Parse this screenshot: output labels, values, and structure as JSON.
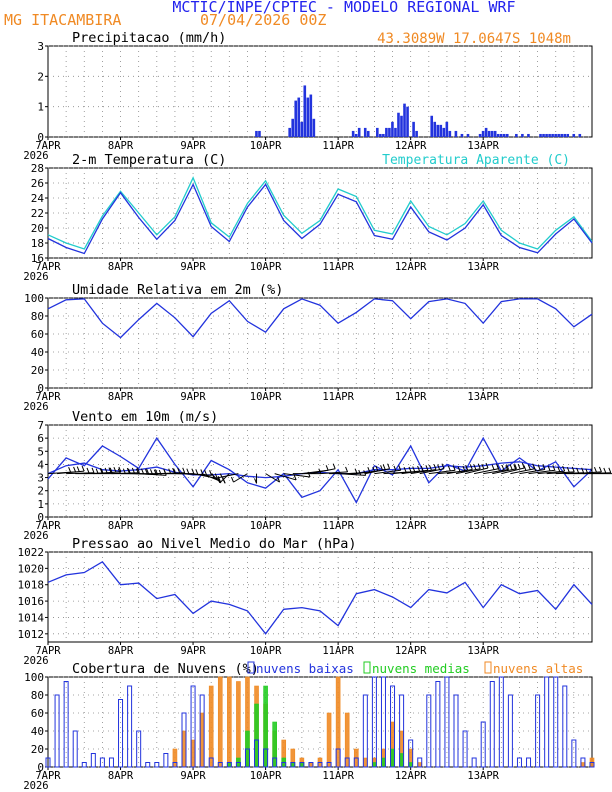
{
  "header": {
    "title": "MCTIC/INPE/CPTEC - MODELO REGIONAL WRF",
    "location": "MG ITACAMBIRA",
    "date": "07/04/2026 00Z",
    "coords": "43.3089W 17.0647S 1048m"
  },
  "days": [
    "7APR",
    "8APR",
    "9APR",
    "10APR",
    "11APR",
    "12APR",
    "13APR"
  ],
  "year_label": "2026",
  "colors": {
    "title": "#2222ee",
    "orange": "#f08a24",
    "cyan": "#22cccc",
    "blue": "#2233dd",
    "green": "#22cc22",
    "black": "#000000"
  },
  "chart_data": [
    {
      "type": "bar",
      "title": "Precipitacao (mm/h)",
      "ylim": [
        0,
        3
      ],
      "yticks": [
        "0",
        "1",
        "2",
        "3"
      ],
      "x_hours": [
        69,
        70,
        80,
        81,
        82,
        83,
        84,
        85,
        86,
        87,
        88,
        101,
        102,
        103,
        105,
        106,
        109,
        110,
        111,
        112,
        113,
        114,
        115,
        116,
        117,
        118,
        119,
        121,
        122,
        127,
        128,
        129,
        130,
        131,
        132,
        133,
        135,
        137,
        139,
        143,
        144,
        145,
        146,
        147,
        148,
        149,
        150,
        151,
        152,
        155,
        157,
        159,
        163,
        164,
        165,
        166,
        167,
        168,
        169,
        170,
        171,
        172,
        174,
        176
      ],
      "values": [
        0.2,
        0.2,
        0.3,
        0.6,
        1.2,
        1.3,
        0.5,
        1.7,
        1.3,
        1.4,
        0.6,
        0.2,
        0.1,
        0.3,
        0.3,
        0.2,
        0.3,
        0.1,
        0.1,
        0.3,
        0.3,
        0.5,
        0.3,
        0.8,
        0.7,
        1.1,
        1.0,
        0.5,
        0.2,
        0.7,
        0.5,
        0.4,
        0.4,
        0.3,
        0.5,
        0.2,
        0.2,
        0.1,
        0.1,
        0.1,
        0.2,
        0.3,
        0.2,
        0.2,
        0.2,
        0.1,
        0.1,
        0.1,
        0.1,
        0.1,
        0.1,
        0.1,
        0.1,
        0.1,
        0.1,
        0.1,
        0.1,
        0.1,
        0.1,
        0.1,
        0.1,
        0.1,
        0.1,
        0.1
      ]
    },
    {
      "type": "line",
      "title": "2-m Temperatura (C)",
      "legend": "Temperatura Aparente (C)",
      "ylim": [
        16,
        28
      ],
      "yticks": [
        "16",
        "18",
        "20",
        "22",
        "24",
        "26",
        "28"
      ],
      "x_hours": [
        0,
        6,
        12,
        18,
        24,
        30,
        36,
        42,
        48,
        54,
        60,
        66,
        72,
        78,
        84,
        90,
        96,
        102,
        108,
        114,
        120,
        126,
        132,
        138,
        144,
        150,
        156,
        162,
        168,
        174,
        180
      ],
      "series": [
        {
          "name": "2-m Temperatura",
          "values": [
            18.6,
            17.4,
            16.6,
            21.2,
            24.7,
            21.4,
            18.5,
            21.0,
            25.8,
            20.2,
            18.2,
            22.8,
            25.8,
            21.0,
            18.6,
            20.5,
            24.5,
            23.5,
            19.0,
            18.5,
            22.8,
            19.5,
            18.4,
            20.0,
            23.1,
            19.0,
            17.4,
            16.7,
            19.2,
            21.2,
            18.0
          ]
        },
        {
          "name": "Temperatura Aparente",
          "values": [
            19.1,
            18.0,
            17.2,
            21.6,
            24.9,
            22.0,
            19.1,
            21.5,
            26.7,
            20.7,
            18.8,
            23.3,
            26.3,
            21.7,
            19.3,
            21.0,
            25.2,
            24.2,
            19.7,
            19.2,
            23.6,
            20.2,
            19.1,
            20.6,
            23.6,
            19.7,
            18.0,
            17.2,
            19.7,
            21.5,
            18.2
          ]
        }
      ]
    },
    {
      "type": "line",
      "title": "Umidade Relativa em 2m (%)",
      "ylim": [
        0,
        100
      ],
      "yticks": [
        "0",
        "20",
        "40",
        "60",
        "80",
        "100"
      ],
      "x_hours": [
        0,
        6,
        12,
        18,
        24,
        30,
        36,
        42,
        48,
        54,
        60,
        66,
        72,
        78,
        84,
        90,
        96,
        102,
        108,
        114,
        120,
        126,
        132,
        138,
        144,
        150,
        156,
        162,
        168,
        174,
        180
      ],
      "values": [
        88,
        98,
        99,
        72,
        56,
        76,
        94,
        78,
        57,
        83,
        97,
        74,
        62,
        88,
        99,
        92,
        72,
        84,
        99,
        97,
        77,
        96,
        99,
        94,
        72,
        96,
        99,
        99,
        88,
        68,
        82
      ]
    },
    {
      "type": "line",
      "title": "Vento em 10m (m/s)",
      "ylim": [
        0,
        7
      ],
      "yticks": [
        "0",
        "1",
        "2",
        "3",
        "4",
        "5",
        "6",
        "7"
      ],
      "x_hours": [
        0,
        6,
        12,
        18,
        24,
        30,
        36,
        42,
        48,
        54,
        60,
        66,
        72,
        78,
        84,
        90,
        96,
        102,
        108,
        114,
        120,
        126,
        132,
        138,
        144,
        150,
        156,
        162,
        168,
        174,
        180
      ],
      "series": [
        {
          "name": "Vento",
          "values": [
            2.9,
            4.5,
            3.9,
            5.4,
            4.6,
            3.7,
            6.0,
            4.0,
            2.3,
            4.3,
            3.6,
            2.6,
            2.2,
            3.3,
            1.5,
            2.0,
            3.6,
            1.1,
            3.9,
            3.2,
            5.4,
            2.6,
            4.0,
            3.5,
            6.0,
            3.5,
            4.5,
            3.5,
            4.2,
            2.3,
            3.6
          ]
        },
        {
          "name": "Vento suavizado",
          "values": [
            3.3,
            3.9,
            4.1,
            3.6,
            3.5,
            3.6,
            3.8,
            3.4,
            3.2,
            3.2,
            3.3,
            3.1,
            3.0,
            3.1,
            3.3,
            3.4,
            3.3,
            3.3,
            3.6,
            3.6,
            3.7,
            3.7,
            3.9,
            3.8,
            3.9,
            4.1,
            4.2,
            3.9,
            3.8,
            3.7,
            3.6
          ]
        }
      ],
      "barbs": {
        "x_hours": [
          0,
          3,
          6,
          9,
          12,
          15,
          18,
          21,
          24,
          27,
          30,
          33,
          36,
          39,
          42,
          45,
          48,
          51,
          54,
          57,
          60,
          63,
          66,
          69,
          72,
          75,
          78,
          81,
          84,
          87,
          90,
          93,
          96,
          99,
          102,
          105,
          108,
          111,
          114,
          117,
          120,
          123,
          126,
          129,
          132,
          135,
          138,
          141,
          144,
          147,
          150,
          153,
          156,
          159,
          162,
          165,
          168,
          171,
          174,
          177,
          180
        ],
        "direction_deg": [
          80,
          75,
          85,
          90,
          85,
          80,
          90,
          85,
          90,
          95,
          100,
          90,
          85,
          90,
          95,
          100,
          120,
          140,
          160,
          170,
          200,
          240,
          210,
          180,
          150,
          130,
          110,
          90,
          70,
          60,
          80,
          90,
          100,
          80,
          70,
          60,
          70,
          80,
          75,
          70,
          65,
          60,
          70,
          75,
          65,
          60,
          55,
          60,
          65,
          60,
          55,
          60,
          65,
          70,
          75,
          80,
          85,
          90,
          80,
          85,
          90
        ],
        "speed_ms": [
          3,
          3,
          4,
          4,
          5,
          5,
          5,
          6,
          6,
          6,
          5,
          5,
          5,
          4,
          3,
          3,
          2,
          2,
          2,
          2,
          2,
          2,
          2,
          2,
          2,
          2,
          2,
          2,
          2,
          2,
          2,
          2,
          3,
          3,
          3,
          3,
          3,
          3,
          4,
          4,
          4,
          4,
          4,
          4,
          4,
          4,
          4,
          4,
          5,
          5,
          5,
          5,
          5,
          4,
          4,
          4,
          4,
          4,
          3,
          3,
          3
        ]
      }
    },
    {
      "type": "line",
      "title": "Pressao ao Nivel Medio do Mar (hPa)",
      "ylim": [
        1011,
        1022
      ],
      "yticks": [
        "1012",
        "1014",
        "1016",
        "1018",
        "1020",
        "1022"
      ],
      "x_hours": [
        0,
        6,
        12,
        18,
        24,
        30,
        36,
        42,
        48,
        54,
        60,
        66,
        72,
        78,
        84,
        90,
        96,
        102,
        108,
        114,
        120,
        126,
        132,
        138,
        144,
        150,
        156,
        162,
        168,
        174,
        180
      ],
      "values": [
        1018.3,
        1019.2,
        1019.5,
        1020.8,
        1018.0,
        1018.2,
        1016.3,
        1016.8,
        1014.5,
        1016.0,
        1015.6,
        1014.8,
        1012.0,
        1015.0,
        1015.2,
        1014.8,
        1013.0,
        1016.9,
        1017.4,
        1016.5,
        1015.2,
        1017.4,
        1017.0,
        1018.3,
        1015.2,
        1018.0,
        1016.9,
        1017.3,
        1015.0,
        1018.0,
        1015.6
      ]
    },
    {
      "type": "bar",
      "title": "Cobertura de Nuvens (%)",
      "legend": [
        "nuvens baixas",
        "nuvens medias",
        "nuvens altas"
      ],
      "ylim": [
        0,
        100
      ],
      "yticks": [
        "0",
        "20",
        "40",
        "60",
        "80",
        "100"
      ],
      "x_hours": [
        0,
        3,
        6,
        9,
        12,
        15,
        18,
        21,
        24,
        27,
        30,
        33,
        36,
        39,
        42,
        45,
        48,
        51,
        54,
        57,
        60,
        63,
        66,
        69,
        72,
        75,
        78,
        81,
        84,
        87,
        90,
        93,
        96,
        99,
        102,
        105,
        108,
        111,
        114,
        117,
        120,
        123,
        126,
        129,
        132,
        135,
        138,
        141,
        144,
        147,
        150,
        153,
        156,
        159,
        162,
        165,
        168,
        171,
        174,
        177,
        180
      ],
      "series": [
        {
          "name": "nuvens baixas",
          "values": [
            10,
            80,
            95,
            40,
            5,
            15,
            10,
            10,
            75,
            90,
            40,
            5,
            5,
            15,
            5,
            60,
            90,
            80,
            10,
            5,
            5,
            5,
            20,
            30,
            20,
            10,
            5,
            5,
            5,
            5,
            5,
            5,
            20,
            10,
            10,
            80,
            100,
            100,
            90,
            80,
            30,
            10,
            80,
            95,
            100,
            80,
            40,
            10,
            50,
            95,
            100,
            80,
            10,
            10,
            80,
            100,
            100,
            90,
            30,
            10,
            5
          ]
        },
        {
          "name": "nuvens medias",
          "values": [
            0,
            0,
            0,
            0,
            0,
            0,
            0,
            0,
            0,
            0,
            0,
            0,
            0,
            0,
            0,
            0,
            0,
            0,
            0,
            0,
            5,
            10,
            40,
            70,
            90,
            50,
            10,
            5,
            5,
            0,
            0,
            0,
            0,
            0,
            0,
            0,
            5,
            10,
            20,
            15,
            5,
            0,
            0,
            0,
            0,
            0,
            0,
            0,
            0,
            0,
            0,
            0,
            0,
            0,
            0,
            0,
            0,
            0,
            0,
            0,
            0
          ]
        },
        {
          "name": "nuvens altas",
          "values": [
            0,
            0,
            0,
            0,
            0,
            0,
            0,
            0,
            0,
            0,
            0,
            0,
            0,
            0,
            20,
            40,
            30,
            60,
            90,
            100,
            100,
            95,
            100,
            90,
            70,
            40,
            30,
            20,
            10,
            5,
            10,
            60,
            100,
            60,
            20,
            10,
            10,
            20,
            50,
            40,
            20,
            5,
            0,
            0,
            0,
            0,
            0,
            0,
            0,
            0,
            0,
            0,
            0,
            0,
            0,
            0,
            0,
            0,
            0,
            5,
            10
          ]
        }
      ]
    }
  ]
}
